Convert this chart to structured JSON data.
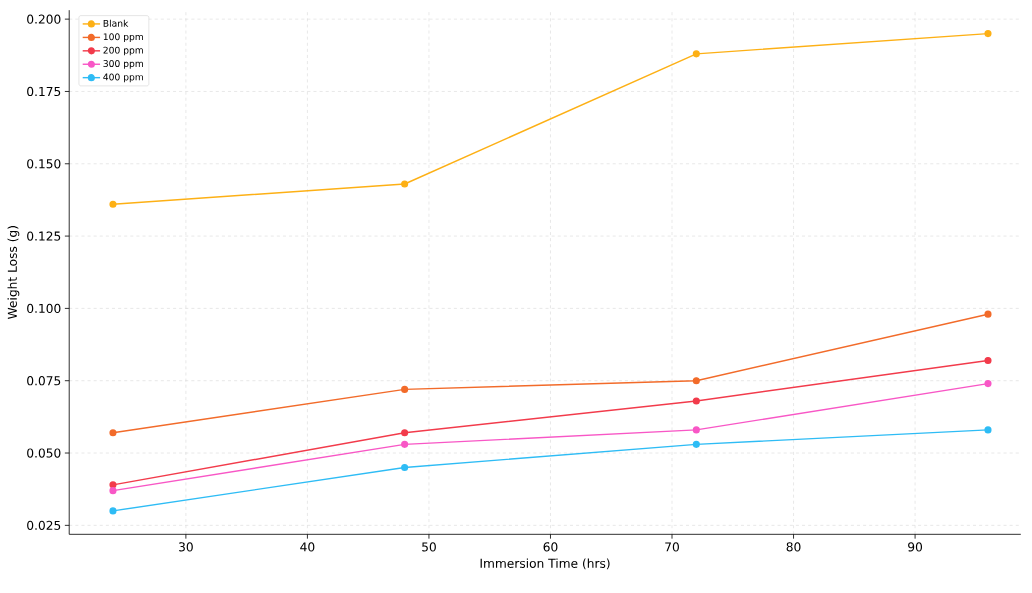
{
  "chart_data": {
    "type": "line",
    "xlabel": "Immersion Time (hrs)",
    "ylabel": "Weight Loss (g)",
    "x": [
      24,
      48,
      72,
      96
    ],
    "series": [
      {
        "name": "Blank",
        "color": "#fdb015",
        "values": [
          0.136,
          0.143,
          0.188,
          0.195
        ]
      },
      {
        "name": "100 ppm",
        "color": "#f26b2a",
        "values": [
          0.057,
          0.072,
          0.075,
          0.098
        ]
      },
      {
        "name": "200 ppm",
        "color": "#f23b4b",
        "values": [
          0.039,
          0.057,
          0.068,
          0.082
        ]
      },
      {
        "name": "300 ppm",
        "color": "#f857c6",
        "values": [
          0.037,
          0.053,
          0.058,
          0.074
        ]
      },
      {
        "name": "400 ppm",
        "color": "#2ebcf5",
        "values": [
          0.03,
          0.045,
          0.053,
          0.058
        ]
      }
    ],
    "xlim": [
      20.4,
      98.7
    ],
    "ylim": [
      0.0219,
      0.2031
    ],
    "xticks": [
      30,
      40,
      50,
      60,
      70,
      80,
      90
    ],
    "yticks": [
      {
        "value": 0.025,
        "label": "0.025"
      },
      {
        "value": 0.05,
        "label": "0.050"
      },
      {
        "value": 0.075,
        "label": "0.075"
      },
      {
        "value": 0.1,
        "label": "0.100"
      },
      {
        "value": 0.125,
        "label": "0.125"
      },
      {
        "value": 0.15,
        "label": "0.150"
      },
      {
        "value": 0.175,
        "label": "0.175"
      },
      {
        "value": 0.2,
        "label": "0.200"
      }
    ],
    "grid": true,
    "legend": "top left",
    "marker": "circle",
    "line_style": "solid"
  }
}
